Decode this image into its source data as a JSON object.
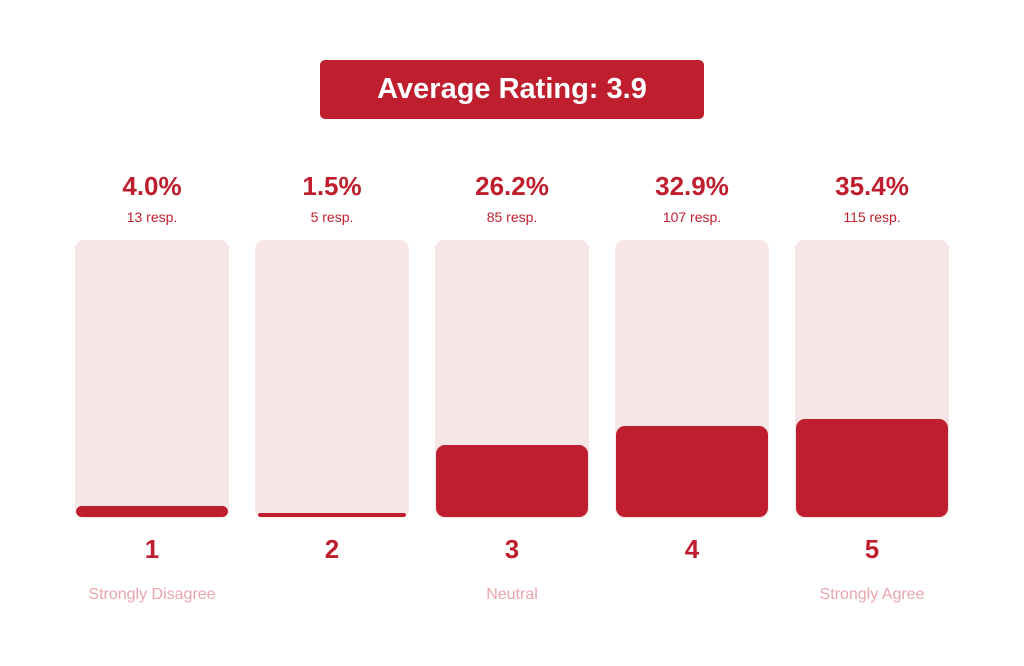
{
  "title": "Average Rating: 3.9",
  "colors": {
    "accent": "#be1e2d",
    "track": "#f8e6e7",
    "label": "#eba5ab"
  },
  "chart_data": {
    "type": "bar",
    "title": "Average Rating: 3.9",
    "categories": [
      "1",
      "2",
      "3",
      "4",
      "5"
    ],
    "values": [
      4.0,
      1.5,
      26.2,
      32.9,
      35.4
    ],
    "ylim": [
      0,
      100
    ],
    "grid": false,
    "legend": "none",
    "bars": [
      {
        "rating": "1",
        "percent": 4.0,
        "percent_label": "4.0%",
        "responses": 13,
        "resp_label": "13 resp.",
        "descriptor": "Strongly Disagree"
      },
      {
        "rating": "2",
        "percent": 1.5,
        "percent_label": "1.5%",
        "responses": 5,
        "resp_label": "5 resp.",
        "descriptor": ""
      },
      {
        "rating": "3",
        "percent": 26.2,
        "percent_label": "26.2%",
        "responses": 85,
        "resp_label": "85 resp.",
        "descriptor": "Neutral"
      },
      {
        "rating": "4",
        "percent": 32.9,
        "percent_label": "32.9%",
        "responses": 107,
        "resp_label": "107 resp.",
        "descriptor": ""
      },
      {
        "rating": "5",
        "percent": 35.4,
        "percent_label": "35.4%",
        "responses": 115,
        "resp_label": "115 resp.",
        "descriptor": "Strongly Agree"
      }
    ]
  }
}
